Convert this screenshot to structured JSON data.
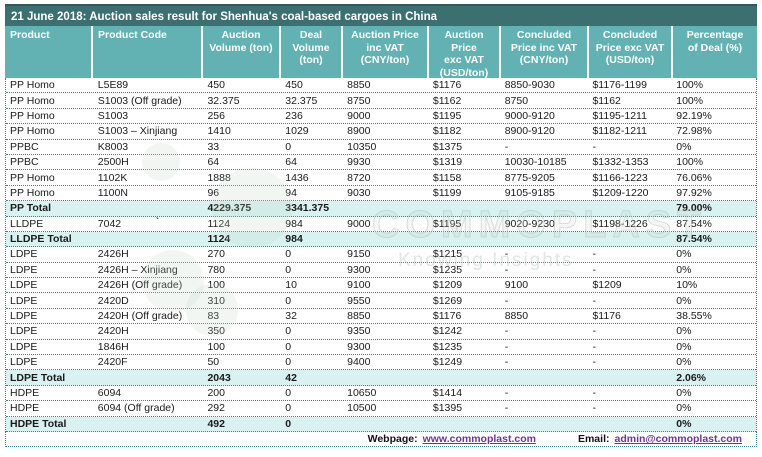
{
  "title": "21 June 2018: Auction sales result for Shenhua's coal-based cargoes in China",
  "colors": {
    "title_bar": "#3C6F70",
    "header_band": "#63B2B3",
    "total_row_bg": "#D8F2F1",
    "grid_dotted": "#35888A",
    "link": "#7030A0"
  },
  "table": {
    "columns": [
      {
        "label": "Product",
        "align": "left"
      },
      {
        "label": "Product Code",
        "align": "left"
      },
      {
        "label": "Auction\nVolume (ton)",
        "align": "center"
      },
      {
        "label": "Deal\nVolume\n(ton)",
        "align": "center"
      },
      {
        "label": "Auction Price\ninc VAT\n(CNY/ton)",
        "align": "center"
      },
      {
        "label": "Auction\nPrice\nexc VAT\n(USD/ton)",
        "align": "center"
      },
      {
        "label": "Concluded\nPrice inc VAT\n(CNY/ton)",
        "align": "center"
      },
      {
        "label": "Concluded\nPrice exc VAT\n(USD/ton)",
        "align": "center"
      },
      {
        "label": "Percentage\nof Deal (%)",
        "align": "center"
      }
    ],
    "rows": [
      {
        "type": "data",
        "cells": [
          "PP Homo",
          "L5E89",
          "450",
          "450",
          "8850",
          "$1176",
          "8850-9030",
          "$1176-1199",
          "100%"
        ]
      },
      {
        "type": "data",
        "cells": [
          "PP Homo",
          "S1003 (Off grade)",
          "32.375",
          "32.375",
          "8750",
          "$1162",
          "8750",
          "$1162",
          "100%"
        ]
      },
      {
        "type": "data",
        "cells": [
          "PP Homo",
          "S1003",
          "256",
          "236",
          "9000",
          "$1195",
          "9000-9120",
          "$1195-1211",
          "92.19%"
        ]
      },
      {
        "type": "data",
        "cells": [
          "PP Homo",
          "S1003 – Xinjiang",
          "1410",
          "1029",
          "8900",
          "$1182",
          "8900-9120",
          "$1182-1211",
          "72.98%"
        ]
      },
      {
        "type": "data",
        "cells": [
          "PPBC",
          "K8003",
          "33",
          "0",
          "10350",
          "$1375",
          "-",
          "-",
          "0%"
        ]
      },
      {
        "type": "data",
        "cells": [
          "PPBC",
          "2500H",
          "64",
          "64",
          "9930",
          "$1319",
          "10030-10185",
          "$1332-1353",
          "100%"
        ]
      },
      {
        "type": "data",
        "cells": [
          "PP Homo",
          "1102K",
          "1888",
          "1436",
          "8720",
          "$1158",
          "8775-9205",
          "$1166-1223",
          "76.06%"
        ]
      },
      {
        "type": "data",
        "cells": [
          "PP Homo",
          "1100N",
          "96",
          "94",
          "9030",
          "$1199",
          "9105-9185",
          "$1209-1220",
          "97.92%"
        ]
      },
      {
        "type": "total",
        "cells": [
          "PP Total",
          "",
          "4229.375",
          "3341.375",
          "",
          "",
          "",
          "",
          "79.00%"
        ]
      },
      {
        "type": "data",
        "mark": "`",
        "cells": [
          "LLDPE",
          "7042",
          "1124",
          "984",
          "9000",
          "$1195",
          "9020-9230",
          "$1198-1226",
          "87.54%"
        ]
      },
      {
        "type": "total",
        "cells": [
          "LLDPE Total",
          "",
          "1124",
          "984",
          "",
          "",
          "",
          "",
          "87.54%"
        ]
      },
      {
        "type": "data",
        "cells": [
          "LDPE",
          "2426H",
          "270",
          "0",
          "9150",
          "$1215",
          "-",
          "-",
          "0%"
        ]
      },
      {
        "type": "data",
        "cells": [
          "LDPE",
          "2426H – Xinjiang",
          "780",
          "0",
          "9300",
          "$1235",
          "-",
          "-",
          "0%"
        ]
      },
      {
        "type": "data",
        "cells": [
          "LDPE",
          "2426H (Off grade)",
          "100",
          "10",
          "9100",
          "$1209",
          "9100",
          "$1209",
          "10%"
        ]
      },
      {
        "type": "data",
        "cells": [
          "LDPE",
          "2420D",
          "310",
          "0",
          "9550",
          "$1269",
          "-",
          "-",
          "0%"
        ]
      },
      {
        "type": "data",
        "cells": [
          "LDPE",
          "2420H (Off grade)",
          "83",
          "32",
          "8850",
          "$1176",
          "8850",
          "$1176",
          "38.55%"
        ]
      },
      {
        "type": "data",
        "cells": [
          "LDPE",
          "2420H",
          "350",
          "0",
          "9350",
          "$1242",
          "-",
          "-",
          "0%"
        ]
      },
      {
        "type": "data",
        "cells": [
          "LDPE",
          "1846H",
          "100",
          "0",
          "9300",
          "$1235",
          "-",
          "-",
          "0%"
        ]
      },
      {
        "type": "data",
        "cells": [
          "LDPE",
          "2420F",
          "50",
          "0",
          "9400",
          "$1249",
          "-",
          "-",
          "0%"
        ]
      },
      {
        "type": "total",
        "cells": [
          "LDPE Total",
          "",
          "2043",
          "42",
          "",
          "",
          "",
          "",
          "2.06%"
        ]
      },
      {
        "type": "data",
        "cells": [
          "HDPE",
          "6094",
          "200",
          "0",
          "10650",
          "$1414",
          "-",
          "-",
          "0%"
        ]
      },
      {
        "type": "data",
        "cells": [
          "HDPE",
          "6094 (Off grade)",
          "292",
          "0",
          "10500",
          "$1395",
          "-",
          "-",
          "0%"
        ]
      },
      {
        "type": "total",
        "cells": [
          "HDPE Total",
          "",
          "492",
          "0",
          "",
          "",
          "",
          "",
          "0%"
        ]
      }
    ]
  },
  "footer": {
    "webpage_label": "Webpage:",
    "webpage_url": "www.commoplast.com",
    "email_label": "Email:",
    "email_value": "admin@commoplast.com"
  },
  "watermark": {
    "text": "COMMOPLAST",
    "tagline": "Knowing Insights"
  }
}
